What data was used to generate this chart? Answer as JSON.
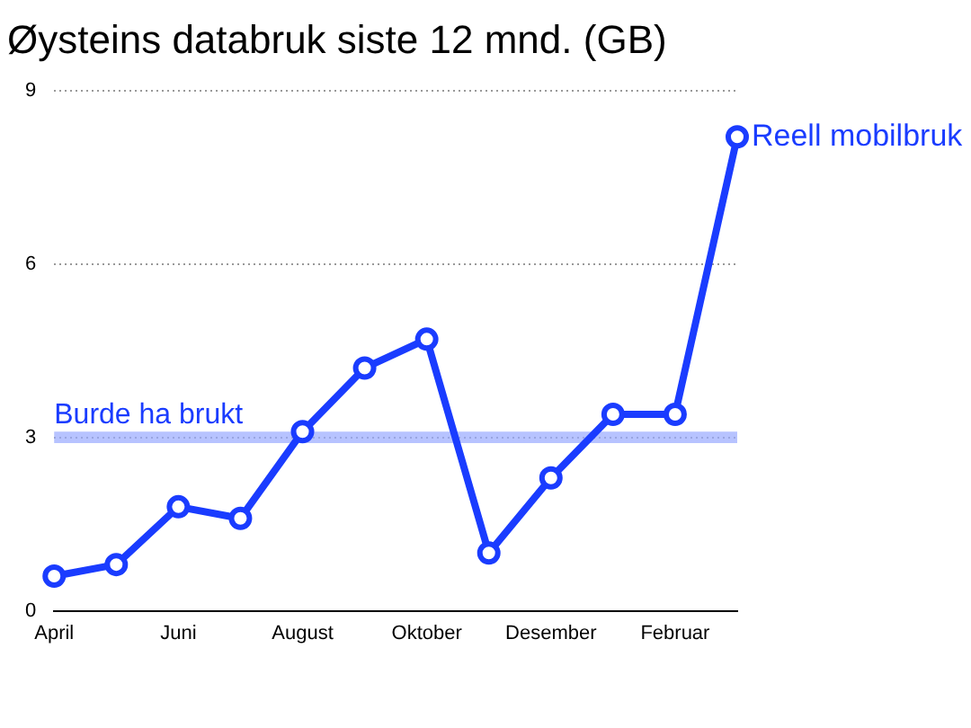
{
  "chart_data": {
    "type": "line",
    "title": "Øysteins databruk siste 12 mnd. (GB)",
    "categories": [
      "April",
      null,
      "Juni",
      null,
      "August",
      null,
      "Oktober",
      null,
      "Desember",
      null,
      "Februar",
      null
    ],
    "series": [
      {
        "name": "Reell mobilbruk",
        "color": "#1a3cff",
        "values": [
          0.6,
          0.8,
          1.8,
          1.6,
          3.1,
          4.2,
          4.7,
          1.0,
          2.3,
          3.4,
          3.4,
          8.2
        ]
      }
    ],
    "ylim": [
      0,
      9
    ],
    "yticks": [
      0,
      3,
      6,
      9
    ],
    "grid": "y",
    "marker": "circle",
    "line_style": "solid",
    "bands": [
      {
        "axis": "y",
        "from": 2.9,
        "to": 3.1,
        "label": "Burde ha brukt",
        "color": "#99aaff"
      }
    ],
    "legend": false
  }
}
